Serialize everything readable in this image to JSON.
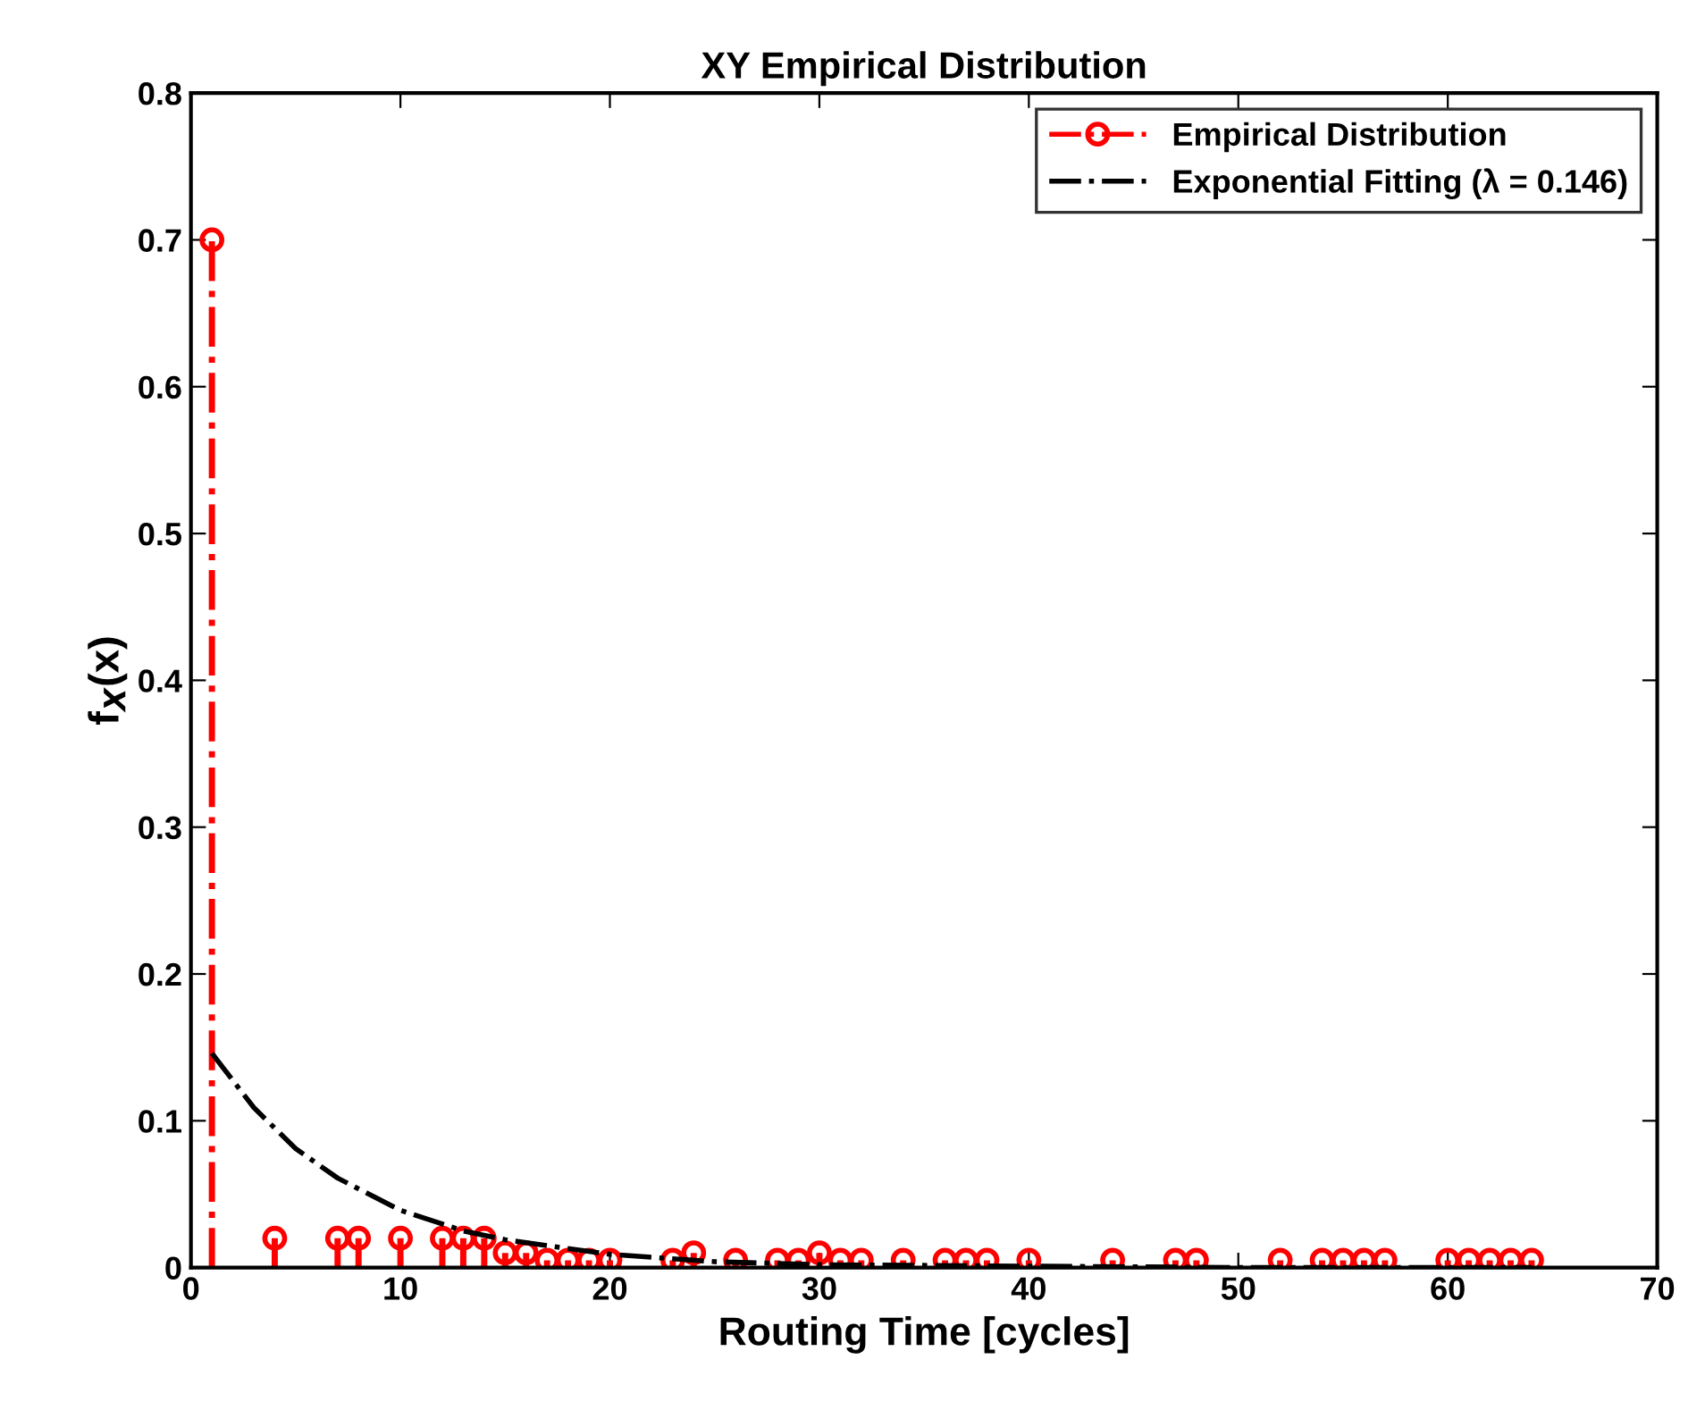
{
  "chart_data": {
    "type": "lollipop",
    "title": "XY Empirical Distribution",
    "xlabel": "Routing Time [cycles]",
    "ylabel": "f$_{X}$(x)",
    "xlim": [
      0,
      70
    ],
    "xticks": [
      0,
      10,
      20,
      30,
      40,
      50,
      60,
      70
    ],
    "ylim": [
      0,
      0.8
    ],
    "yticks": [
      0,
      0.1,
      0.2,
      0.3,
      0.4,
      0.5,
      0.6,
      0.7,
      0.8
    ],
    "grid": false,
    "legend": "top right",
    "series": [
      {
        "name": "Empirical Distribution",
        "color": "#ff0000",
        "marker": "circle",
        "line_style": "dashdot",
        "x": [
          1,
          4,
          7,
          8,
          10,
          12,
          13,
          14,
          15,
          16,
          17,
          18,
          19,
          20,
          23,
          24,
          26,
          28,
          29,
          30,
          31,
          32,
          34,
          36,
          37,
          38,
          40,
          44,
          47,
          48,
          52,
          54,
          55,
          56,
          57,
          60,
          61,
          62,
          63,
          64
        ],
        "values": [
          0.7,
          0.02,
          0.02,
          0.02,
          0.02,
          0.02,
          0.02,
          0.02,
          0.01,
          0.01,
          0.005,
          0.005,
          0.005,
          0.005,
          0.005,
          0.01,
          0.005,
          0.005,
          0.005,
          0.01,
          0.005,
          0.005,
          0.005,
          0.005,
          0.005,
          0.005,
          0.005,
          0.005,
          0.005,
          0.005,
          0.005,
          0.005,
          0.005,
          0.005,
          0.005,
          0.005,
          0.005,
          0.005,
          0.005,
          0.005
        ]
      },
      {
        "name": "Exponential Fitting (λ = 0.146)",
        "type": "line",
        "color": "#000000",
        "marker": "none",
        "line_style": "dashdot",
        "x": [
          1,
          3,
          5,
          7,
          10,
          13,
          15,
          20,
          25,
          30,
          40,
          50,
          64
        ],
        "values": [
          0.146,
          0.109,
          0.081,
          0.061,
          0.039,
          0.025,
          0.019,
          0.009,
          0.004,
          0.002,
          0.001,
          0.0,
          0.0
        ]
      }
    ]
  }
}
